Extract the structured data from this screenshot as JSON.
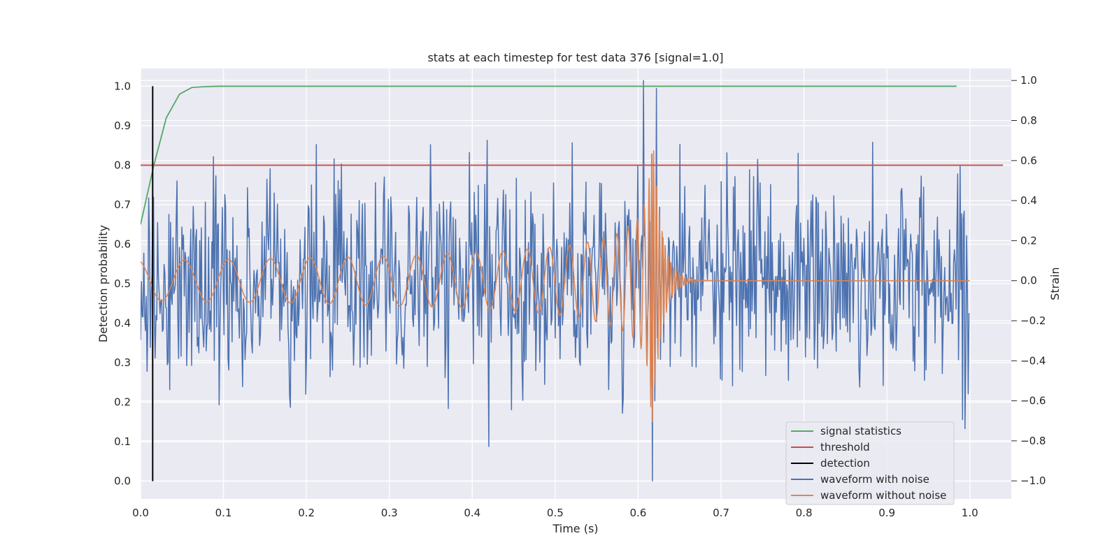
{
  "chart_data": {
    "type": "line",
    "title": "stats at each timestep for test data 376 [signal=1.0]",
    "xlabel": "Time (s)",
    "ylabel": "Detection probability",
    "ylabel_right": "Strain",
    "xlim": [
      0.0,
      1.05
    ],
    "ylim": [
      -0.045,
      1.045
    ],
    "ylim_right": [
      -1.09,
      1.06
    ],
    "xticks": [
      "0.0",
      "0.1",
      "0.2",
      "0.3",
      "0.4",
      "0.5",
      "0.6",
      "0.7",
      "0.8",
      "0.9",
      "1.0"
    ],
    "yticks": [
      "0.0",
      "0.1",
      "0.2",
      "0.3",
      "0.4",
      "0.5",
      "0.6",
      "0.7",
      "0.8",
      "0.9",
      "1.0"
    ],
    "yticks_right": [
      "−1.0",
      "−0.8",
      "−0.6",
      "−0.4",
      "−0.2",
      "0.0",
      "0.2",
      "0.4",
      "0.6",
      "0.8",
      "1.0"
    ],
    "grid": true,
    "legend_position": "lower-right",
    "series": [
      {
        "name": "signal statistics",
        "axis": "left",
        "color": "#55a868",
        "x": [
          0.0,
          0.016,
          0.031,
          0.047,
          0.062,
          0.078,
          0.094,
          0.2,
          0.4,
          0.6,
          0.8,
          0.984
        ],
        "y": [
          0.65,
          0.8,
          0.92,
          0.98,
          0.997,
          0.999,
          1.0,
          1.0,
          1.0,
          1.0,
          1.0,
          1.0
        ]
      },
      {
        "name": "threshold",
        "axis": "left",
        "color": "#c44e52",
        "x": [
          0.0,
          1.04
        ],
        "y": [
          0.8,
          0.8
        ]
      },
      {
        "name": "detection",
        "axis": "left",
        "color": "#000000",
        "x": [
          0.0146,
          0.0146
        ],
        "y": [
          0.0,
          1.0
        ]
      },
      {
        "name": "waveform with noise",
        "axis": "right",
        "color": "#4c72b0",
        "sample_rate_hz": 1024,
        "duration_s": 1.0,
        "y_abs_max": 1.0,
        "peak_time_s": 0.606,
        "trough_time_s": 0.617
      },
      {
        "name": "waveform without noise",
        "axis": "right",
        "color": "#dd8452",
        "sample_rate_hz": 2048,
        "duration_s": 1.0,
        "merger_time_s": 0.617,
        "max_strain": 0.67,
        "min_strain": -0.76
      }
    ]
  }
}
